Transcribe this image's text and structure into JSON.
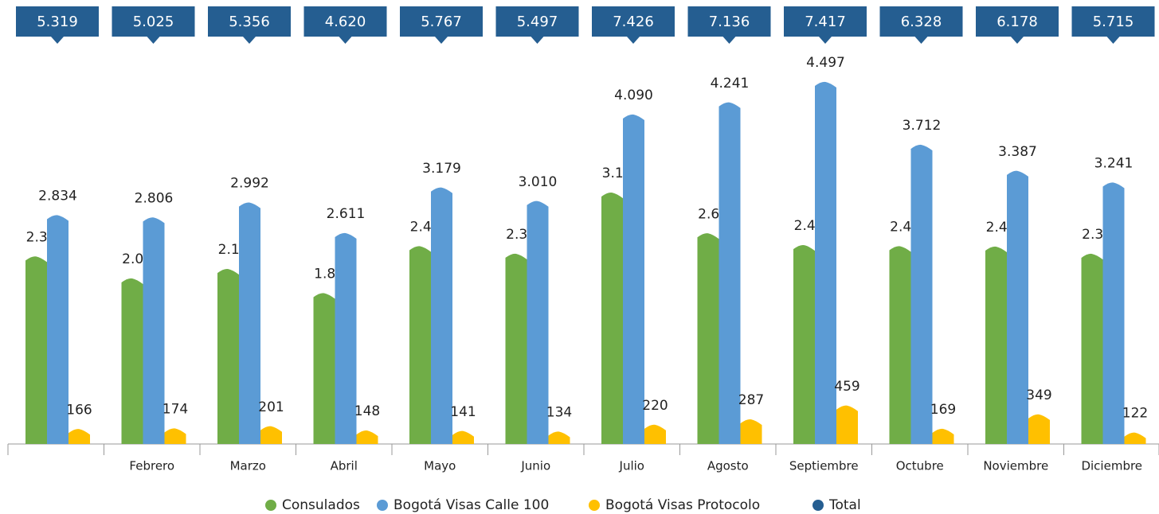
{
  "chart_data": {
    "type": "bar",
    "categories": [
      null,
      "Febrero",
      "Marzo",
      "Abril",
      "Mayo",
      "Junio",
      "Julio",
      "Agosto",
      "Septiembre",
      "Octubre",
      "Noviembre",
      "Diciembre"
    ],
    "series": [
      {
        "name": "Consulados",
        "color": "#70ad47",
        "values": [
          2319,
          2045,
          2163,
          1861,
          2447,
          2353,
          3116,
          2608,
          2461,
          2447,
          2442,
          2352
        ],
        "value_labels": [
          "2.319",
          "2.045",
          "2.163",
          "1.861",
          "2.447",
          "2.353",
          "3.116",
          "2.608",
          "2.461",
          "2.447",
          "2.442",
          "2.352"
        ]
      },
      {
        "name": "Bogotá Visas Calle 100",
        "color": "#5b9bd5",
        "values": [
          2834,
          2806,
          2992,
          2611,
          3179,
          3010,
          4090,
          4241,
          4497,
          3712,
          3387,
          3241
        ],
        "value_labels": [
          "2.834",
          "2.806",
          "2.992",
          "2.611",
          "3.179",
          "3.010",
          "4.090",
          "4.241",
          "4.497",
          "3.712",
          "3.387",
          "3.241"
        ]
      },
      {
        "name": "Bogotá Visas Protocolo",
        "color": "#ffc000",
        "values": [
          166,
          174,
          201,
          148,
          141,
          134,
          220,
          287,
          459,
          169,
          349,
          122
        ],
        "value_labels": [
          "166",
          "174",
          "201",
          "148",
          "141",
          "134",
          "220",
          "287",
          "459",
          "169",
          "349",
          "122"
        ]
      },
      {
        "name": "Total",
        "color": "#255e91",
        "values": [
          5319,
          5025,
          5356,
          4620,
          5767,
          5497,
          7426,
          7136,
          7417,
          6328,
          6178,
          5715
        ],
        "value_labels": [
          "5.319",
          "5.025",
          "5.356",
          "4.620",
          "5.767",
          "5.497",
          "7.426",
          "7.136",
          "7.417",
          "6.328",
          "6.178",
          "5.715"
        ]
      }
    ]
  }
}
